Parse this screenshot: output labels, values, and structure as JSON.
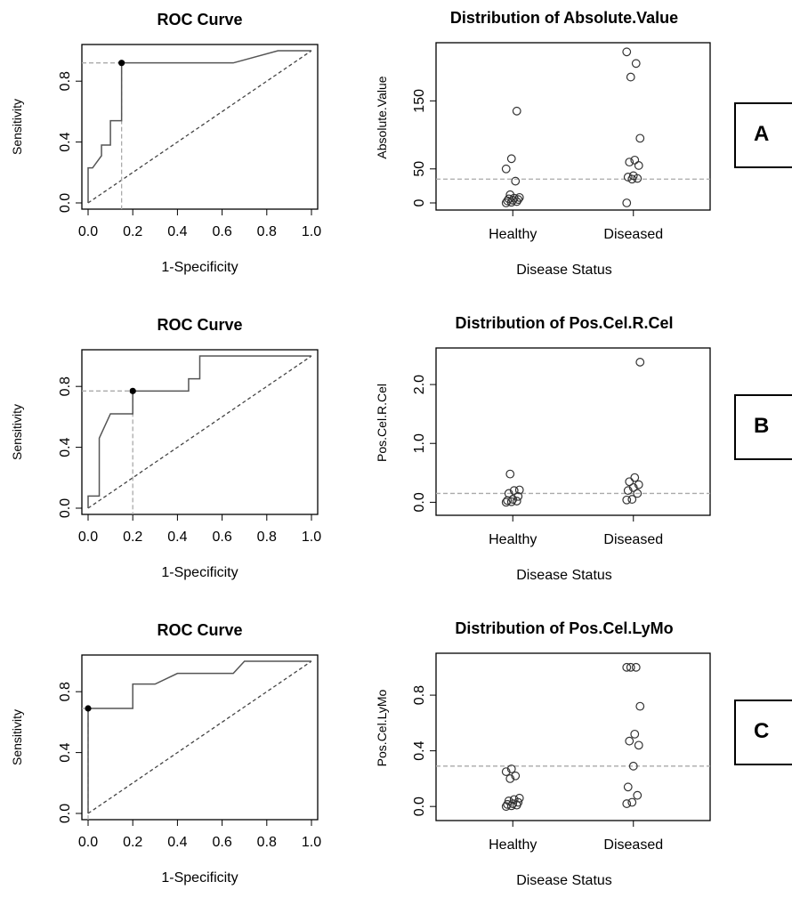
{
  "chart_data": [
    {
      "type": "line",
      "panel": "A",
      "title": "ROC Curve",
      "xlabel": "1-Specificity",
      "ylabel": "Sensitivity",
      "xlim": [
        0,
        1
      ],
      "ylim": [
        0,
        1
      ],
      "xticks": [
        "0.0",
        "0.2",
        "0.4",
        "0.6",
        "0.8",
        "1.0"
      ],
      "yticks": [
        "0.0",
        "0.4",
        "0.8"
      ],
      "x": [
        0,
        0,
        0.02,
        0.06,
        0.06,
        0.1,
        0.1,
        0.15,
        0.15,
        0.65,
        0.85,
        1.0
      ],
      "y": [
        0,
        0.23,
        0.23,
        0.31,
        0.38,
        0.38,
        0.54,
        0.54,
        0.92,
        0.92,
        1.0,
        1.0
      ],
      "cutoff_point": {
        "x": 0.15,
        "y": 0.92
      },
      "diagonal": true,
      "grid": false
    },
    {
      "type": "scatter",
      "panel": "A",
      "title": "Distribution of Absolute.Value",
      "xlabel": "Disease Status",
      "ylabel": "Absolute.Value",
      "categories": [
        "Healthy",
        "Diseased"
      ],
      "ylim": [
        0,
        225
      ],
      "yticks": [
        "0",
        "50",
        "150"
      ],
      "threshold": 35,
      "series": [
        {
          "category": "Healthy",
          "values": [
            0,
            1,
            2,
            3,
            4,
            5,
            6,
            7,
            8,
            12,
            32,
            50,
            65,
            135
          ]
        },
        {
          "category": "Diseased",
          "values": [
            0,
            35,
            36,
            38,
            40,
            55,
            60,
            63,
            95,
            185,
            205,
            222
          ]
        }
      ],
      "grid": false
    },
    {
      "type": "line",
      "panel": "B",
      "title": "ROC Curve",
      "xlabel": "1-Specificity",
      "ylabel": "Sensitivity",
      "xlim": [
        0,
        1
      ],
      "ylim": [
        0,
        1
      ],
      "xticks": [
        "0.0",
        "0.2",
        "0.4",
        "0.6",
        "0.8",
        "1.0"
      ],
      "yticks": [
        "0.0",
        "0.4",
        "0.8"
      ],
      "x": [
        0,
        0,
        0.05,
        0.05,
        0.1,
        0.15,
        0.15,
        0.2,
        0.2,
        0.45,
        0.45,
        0.5,
        0.5,
        1.0
      ],
      "y": [
        0,
        0.08,
        0.08,
        0.46,
        0.62,
        0.62,
        0.62,
        0.62,
        0.77,
        0.77,
        0.85,
        0.85,
        1.0,
        1.0
      ],
      "cutoff_point": {
        "x": 0.2,
        "y": 0.77
      },
      "diagonal": true,
      "grid": false
    },
    {
      "type": "scatter",
      "panel": "B",
      "title": "Distribution of Pos.Cel.R.Cel",
      "xlabel": "Disease Status",
      "ylabel": "Pos.Cel.R.Cel",
      "categories": [
        "Healthy",
        "Diseased"
      ],
      "ylim": [
        -0.1,
        2.5
      ],
      "yticks": [
        "0.0",
        "1.0",
        "2.0"
      ],
      "threshold": 0.15,
      "series": [
        {
          "category": "Healthy",
          "values": [
            0,
            0.01,
            0.02,
            0.03,
            0.05,
            0.1,
            0.15,
            0.2,
            0.21,
            0.48
          ]
        },
        {
          "category": "Diseased",
          "values": [
            0.04,
            0.05,
            0.15,
            0.2,
            0.25,
            0.3,
            0.35,
            0.42,
            2.38
          ]
        }
      ],
      "grid": false
    },
    {
      "type": "line",
      "panel": "C",
      "title": "ROC Curve",
      "xlabel": "1-Specificity",
      "ylabel": "Sensitivity",
      "xlim": [
        0,
        1
      ],
      "ylim": [
        0,
        1
      ],
      "xticks": [
        "0.0",
        "0.2",
        "0.4",
        "0.6",
        "0.8",
        "1.0"
      ],
      "yticks": [
        "0.0",
        "0.4",
        "0.8"
      ],
      "x": [
        0,
        0,
        0.2,
        0.2,
        0.3,
        0.4,
        0.65,
        0.7,
        1.0
      ],
      "y": [
        0,
        0.69,
        0.69,
        0.85,
        0.85,
        0.92,
        0.92,
        1.0,
        1.0
      ],
      "cutoff_point": {
        "x": 0,
        "y": 0.69
      },
      "diagonal": true,
      "grid": false
    },
    {
      "type": "scatter",
      "panel": "C",
      "title": "Distribution of Pos.Cel.LyMo",
      "xlabel": "Disease Status",
      "ylabel": "Pos.Cel.LyMo",
      "categories": [
        "Healthy",
        "Diseased"
      ],
      "ylim": [
        -0.05,
        1.05
      ],
      "yticks": [
        "0.0",
        "0.4",
        "0.8"
      ],
      "threshold": 0.29,
      "series": [
        {
          "category": "Healthy",
          "values": [
            0,
            0.005,
            0.01,
            0.015,
            0.02,
            0.03,
            0.04,
            0.05,
            0.06,
            0.2,
            0.22,
            0.25,
            0.27
          ]
        },
        {
          "category": "Diseased",
          "values": [
            0.02,
            0.03,
            0.08,
            0.14,
            0.29,
            0.44,
            0.47,
            0.52,
            0.72,
            1.0,
            1.0,
            1.0
          ]
        }
      ],
      "grid": false
    }
  ],
  "panel_labels": [
    "A",
    "B",
    "C"
  ]
}
